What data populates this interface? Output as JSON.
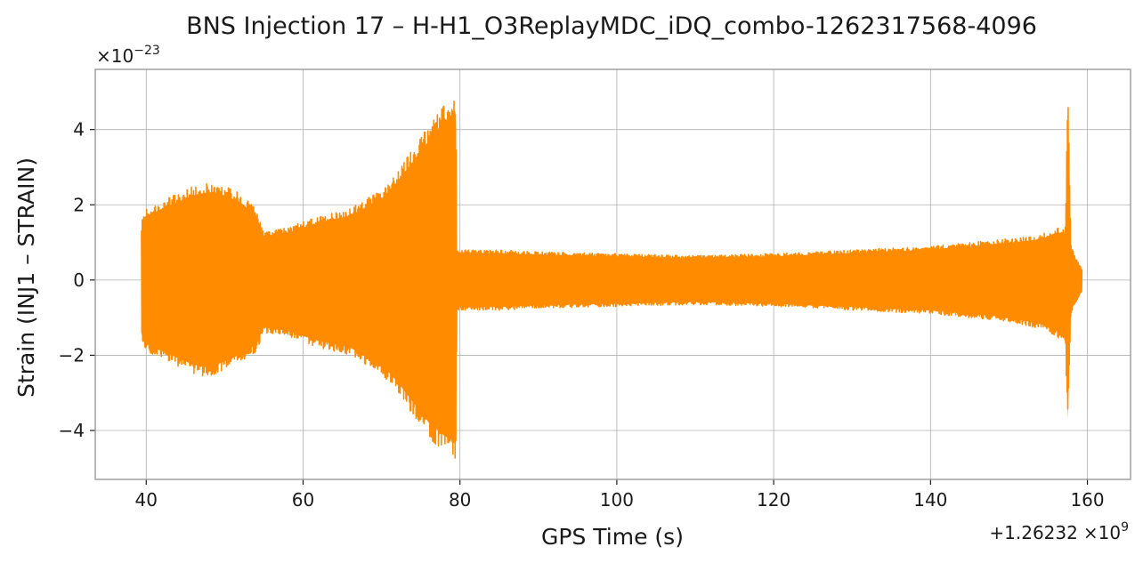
{
  "chart_data": {
    "type": "line",
    "title": "BNS Injection 17 – H-H1_O3ReplayMDC_iDQ_combo-1262317568-4096",
    "xlabel": "GPS Time (s)",
    "ylabel": "Strain (INJ1 – STRAIN)",
    "x_offset_text": "+1.26232",
    "x_offset_mult": "×10",
    "x_offset_exp": "9",
    "y_scale_mult": "×10",
    "y_scale_exp": "−23",
    "xlim": [
      33.5,
      165.5
    ],
    "ylim": [
      -5.3,
      5.6
    ],
    "x_ticks": [
      40,
      60,
      80,
      100,
      120,
      140,
      160
    ],
    "x_tick_labels": [
      "40",
      "60",
      "80",
      "100",
      "120",
      "140",
      "160"
    ],
    "y_ticks": [
      -4,
      -2,
      0,
      2,
      4
    ],
    "y_tick_labels": [
      "−4",
      "−2",
      "0",
      "2",
      "4"
    ],
    "grid": true,
    "series": [
      {
        "color": "#ff8c00",
        "envelope": {
          "x": [
            39.4,
            40,
            42,
            44,
            46,
            48,
            50,
            52,
            54,
            55,
            58,
            62,
            66,
            70,
            72,
            74,
            76,
            78,
            79.5,
            79.6,
            85,
            90,
            100,
            110,
            120,
            130,
            140,
            150,
            154,
            156,
            157.2,
            157.5,
            157.9,
            158.5,
            159.3
          ],
          "upper": [
            1.6,
            1.9,
            2.1,
            2.3,
            2.5,
            2.6,
            2.5,
            2.3,
            1.9,
            1.3,
            1.4,
            1.7,
            1.9,
            2.4,
            2.9,
            3.5,
            4.1,
            4.7,
            4.9,
            0.8,
            0.8,
            0.75,
            0.7,
            0.65,
            0.7,
            0.8,
            0.9,
            1.1,
            1.2,
            1.4,
            1.4,
            5.1,
            1.0,
            0.6,
            0.3
          ],
          "lower": [
            -1.6,
            -1.9,
            -2.1,
            -2.3,
            -2.5,
            -2.6,
            -2.4,
            -2.2,
            -1.9,
            -1.4,
            -1.5,
            -1.8,
            -2.0,
            -2.5,
            -3.0,
            -3.6,
            -4.2,
            -4.6,
            -4.8,
            -0.8,
            -0.8,
            -0.75,
            -0.7,
            -0.65,
            -0.7,
            -0.8,
            -0.9,
            -1.1,
            -1.3,
            -1.5,
            -1.7,
            -4.1,
            -0.9,
            -0.6,
            -0.3
          ]
        }
      }
    ]
  }
}
